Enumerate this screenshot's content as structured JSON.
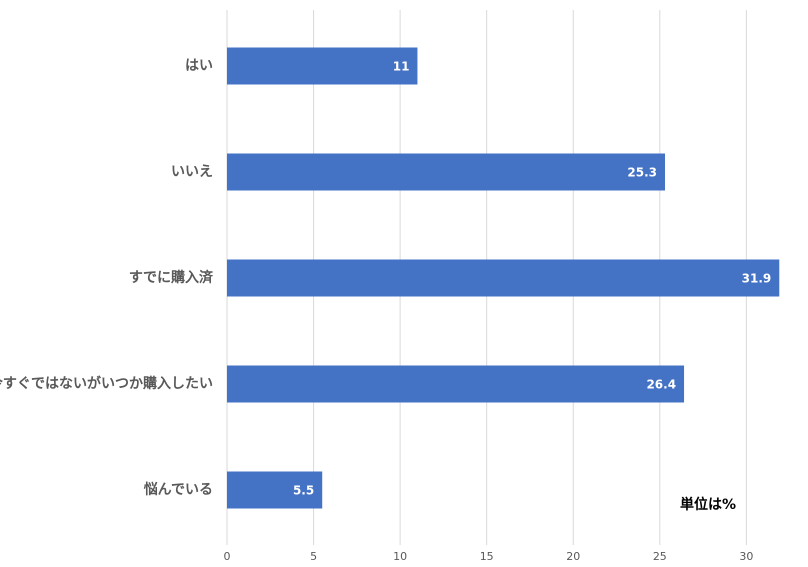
{
  "chart_data": {
    "type": "bar",
    "orientation": "horizontal",
    "categories": [
      "はい",
      "いいえ",
      "すでに購入済",
      "今すぐではないがいつか購入したい",
      "悩んでいる"
    ],
    "values": [
      11,
      25.3,
      31.9,
      26.4,
      5.5
    ],
    "color": "#4472c4",
    "xlim": [
      0,
      32
    ],
    "xticks": [
      0,
      5,
      10,
      15,
      20,
      25,
      30
    ],
    "grid": true,
    "annotation": "単位は%"
  }
}
